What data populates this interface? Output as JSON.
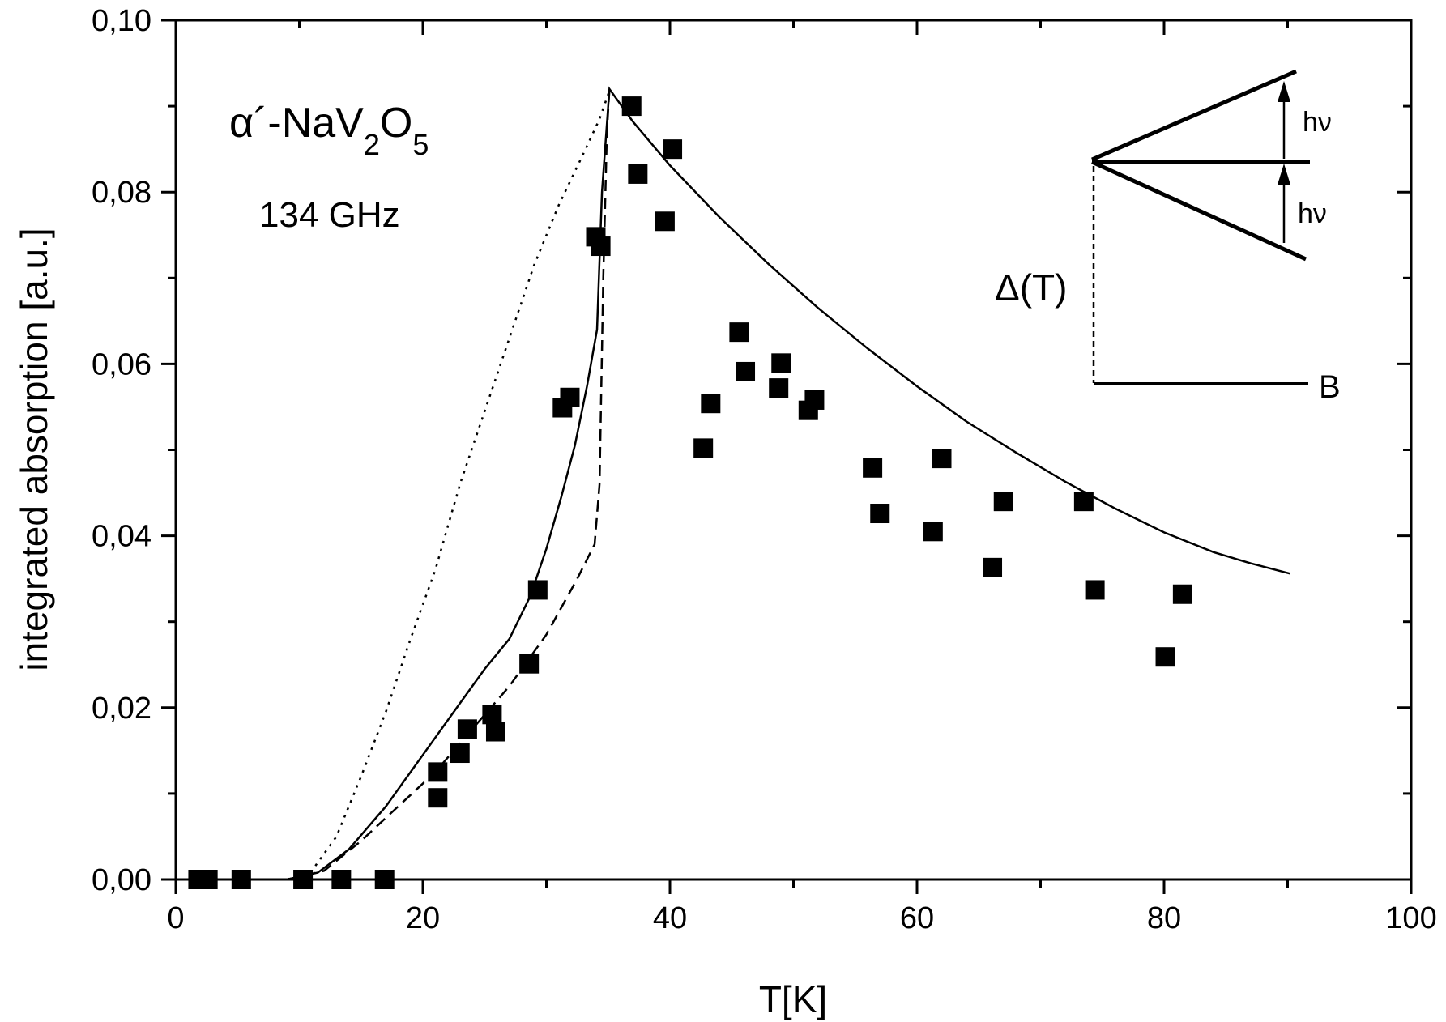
{
  "chart_data": {
    "type": "scatter",
    "xlabel": "T[K]",
    "ylabel": "integrated absorption [a.u.]",
    "xlim": [
      0,
      100
    ],
    "ylim": [
      0,
      0.1
    ],
    "x_ticks": [
      0,
      20,
      40,
      60,
      80,
      100
    ],
    "x_tick_labels": [
      "0",
      "20",
      "40",
      "60",
      "80",
      "100"
    ],
    "y_ticks": [
      0,
      0.02,
      0.04,
      0.06,
      0.08,
      0.1
    ],
    "y_tick_labels": [
      "0,00",
      "0,02",
      "0,04",
      "0,06",
      "0,08",
      "0,10"
    ],
    "grid": false,
    "annotations": {
      "compound_prefix": "α´-NaV",
      "compound_sub1": "2",
      "compound_mid": "O",
      "compound_sub2": "5",
      "frequency": "134 GHz",
      "gap_label": "Δ(T)",
      "field_label": "B",
      "photon_label_upper": "hν",
      "photon_label_lower": "hν"
    },
    "series": [
      {
        "style": "filled-square-markers",
        "points": [
          [
            1.8,
            0.0
          ],
          [
            2.6,
            0.0
          ],
          [
            5.3,
            0.0
          ],
          [
            10.3,
            0.0
          ],
          [
            13.4,
            0.0
          ],
          [
            16.9,
            0.0
          ],
          [
            21.2,
            0.0095
          ],
          [
            21.2,
            0.0125
          ],
          [
            23.0,
            0.0147
          ],
          [
            23.6,
            0.0175
          ],
          [
            25.6,
            0.0192
          ],
          [
            25.9,
            0.0172
          ],
          [
            28.6,
            0.0251
          ],
          [
            29.3,
            0.0337
          ],
          [
            31.3,
            0.0549
          ],
          [
            31.9,
            0.0561
          ],
          [
            34.0,
            0.0748
          ],
          [
            34.4,
            0.0737
          ],
          [
            36.9,
            0.09
          ],
          [
            37.4,
            0.0821
          ],
          [
            39.6,
            0.0766
          ],
          [
            40.2,
            0.085
          ],
          [
            42.7,
            0.0502
          ],
          [
            43.3,
            0.0554
          ],
          [
            45.6,
            0.0637
          ],
          [
            46.1,
            0.0591
          ],
          [
            48.8,
            0.0572
          ],
          [
            49.0,
            0.0601
          ],
          [
            51.2,
            0.0546
          ],
          [
            51.7,
            0.0558
          ],
          [
            56.4,
            0.0479
          ],
          [
            57.0,
            0.0426
          ],
          [
            61.3,
            0.0405
          ],
          [
            62.0,
            0.049
          ],
          [
            66.1,
            0.0363
          ],
          [
            67.0,
            0.044
          ],
          [
            73.5,
            0.044
          ],
          [
            74.4,
            0.0337
          ],
          [
            80.1,
            0.0259
          ],
          [
            81.5,
            0.0332
          ]
        ]
      },
      {
        "style": "solid-line",
        "points": [
          [
            9.0,
            0.0
          ],
          [
            11.5,
            0.0008
          ],
          [
            14.0,
            0.0035
          ],
          [
            17.0,
            0.0085
          ],
          [
            20.0,
            0.0145
          ],
          [
            22.5,
            0.0195
          ],
          [
            25.0,
            0.0245
          ],
          [
            27.0,
            0.028
          ],
          [
            28.7,
            0.033
          ],
          [
            30.0,
            0.0385
          ],
          [
            31.2,
            0.0445
          ],
          [
            32.3,
            0.0505
          ],
          [
            33.3,
            0.0575
          ],
          [
            34.1,
            0.064
          ],
          [
            34.5,
            0.08
          ],
          [
            35.1,
            0.092
          ],
          [
            37.0,
            0.0882
          ],
          [
            40.0,
            0.0831
          ],
          [
            44.0,
            0.0771
          ],
          [
            48.0,
            0.0716
          ],
          [
            52.0,
            0.0665
          ],
          [
            56.0,
            0.0618
          ],
          [
            60.0,
            0.0574
          ],
          [
            64.0,
            0.0533
          ],
          [
            68.0,
            0.0497
          ],
          [
            72.0,
            0.0463
          ],
          [
            76.0,
            0.0432
          ],
          [
            80.0,
            0.0404
          ],
          [
            84.0,
            0.0381
          ],
          [
            87.0,
            0.0368
          ],
          [
            90.2,
            0.0356
          ]
        ]
      },
      {
        "style": "dashed-line",
        "points": [
          [
            9.0,
            0.0
          ],
          [
            12.0,
            0.001
          ],
          [
            15.0,
            0.0045
          ],
          [
            18.0,
            0.0085
          ],
          [
            21.0,
            0.0125
          ],
          [
            24.0,
            0.0175
          ],
          [
            27.0,
            0.0225
          ],
          [
            30.0,
            0.0285
          ],
          [
            32.5,
            0.035
          ],
          [
            33.9,
            0.039
          ],
          [
            34.3,
            0.046
          ],
          [
            34.6,
            0.07
          ],
          [
            34.9,
            0.087
          ],
          [
            35.1,
            0.092
          ]
        ]
      },
      {
        "style": "dotted-line",
        "points": [
          [
            9.0,
            0.0
          ],
          [
            11.0,
            0.001
          ],
          [
            13.0,
            0.005
          ],
          [
            15.0,
            0.012
          ],
          [
            17.0,
            0.0195
          ],
          [
            19.0,
            0.028
          ],
          [
            21.0,
            0.036
          ],
          [
            23.0,
            0.046
          ],
          [
            25.0,
            0.0545
          ],
          [
            27.0,
            0.063
          ],
          [
            29.0,
            0.0715
          ],
          [
            31.0,
            0.0785
          ],
          [
            33.0,
            0.0845
          ],
          [
            34.3,
            0.0885
          ],
          [
            35.1,
            0.0918
          ]
        ]
      }
    ]
  }
}
